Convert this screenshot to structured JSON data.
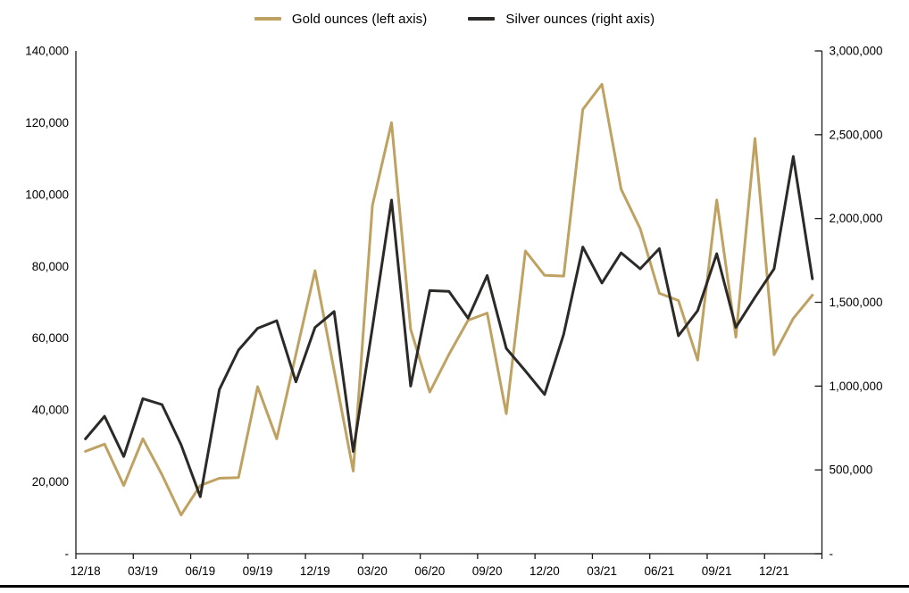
{
  "chart_data": {
    "type": "line",
    "title": "",
    "legend_position": "top",
    "grid": false,
    "legend": {
      "gold": "Gold ounces (left axis)",
      "silver": "Silver ounces (right axis)"
    },
    "colors": {
      "gold": "#BFA161",
      "silver": "#2B2A28",
      "axis": "#1a1a1a",
      "label": "#000000"
    },
    "x": [
      "12/18",
      "01/19",
      "02/19",
      "03/19",
      "04/19",
      "05/19",
      "06/19",
      "07/19",
      "08/19",
      "09/19",
      "10/19",
      "11/19",
      "12/19",
      "01/20",
      "02/20",
      "03/20",
      "04/20",
      "05/20",
      "06/20",
      "07/20",
      "08/20",
      "09/20",
      "10/20",
      "11/20",
      "12/20",
      "01/21",
      "02/21",
      "03/21",
      "04/21",
      "05/21",
      "06/21",
      "07/21",
      "08/21",
      "09/21",
      "10/21",
      "11/21",
      "12/21",
      "01/22",
      "02/22"
    ],
    "x_tick_labels": [
      "12/18",
      "03/19",
      "06/19",
      "09/19",
      "12/19",
      "03/20",
      "06/20",
      "09/20",
      "12/20",
      "03/21",
      "06/21",
      "09/21",
      "12/21"
    ],
    "series": [
      {
        "name": "Gold ounces (left axis)",
        "axis": "left",
        "values": [
          28500,
          30500,
          19000,
          32000,
          22000,
          10800,
          19000,
          21000,
          21200,
          46500,
          32000,
          55500,
          78800,
          51000,
          23000,
          97000,
          120000,
          62500,
          45000,
          55500,
          65000,
          67000,
          39000,
          84300,
          77500,
          77300,
          123700,
          130700,
          101500,
          90500,
          72500,
          70500,
          53900,
          98500,
          60300,
          115600,
          55400,
          65500,
          72000
        ]
      },
      {
        "name": "Silver ounces (right axis)",
        "axis": "right",
        "values": [
          685000,
          820000,
          580000,
          925000,
          890000,
          650000,
          340000,
          980000,
          1215000,
          1345000,
          1390000,
          1025000,
          1350000,
          1445000,
          610000,
          1350000,
          2110000,
          1000000,
          1570000,
          1565000,
          1405000,
          1660000,
          1225000,
          1090000,
          950000,
          1310000,
          1830000,
          1615000,
          1795000,
          1700000,
          1820000,
          1300000,
          1450000,
          1790000,
          1350000,
          1530000,
          1700000,
          2370000,
          1640000
        ]
      }
    ],
    "left_axis": {
      "min": 0,
      "max": 140000,
      "step": 20000,
      "tick_labels": [
        "140,000",
        "120,000",
        "100,000",
        "80,000",
        "60,000",
        "40,000",
        "20,000",
        "-"
      ]
    },
    "right_axis": {
      "min": 0,
      "max": 3000000,
      "step": 500000,
      "tick_labels": [
        "3,000,000",
        "2,500,000",
        "2,000,000",
        "1,500,000",
        "1,000,000",
        "500,000",
        "-"
      ]
    }
  }
}
